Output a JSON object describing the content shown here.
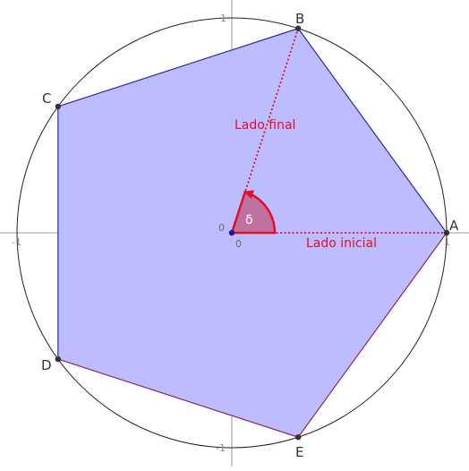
{
  "diagram": {
    "axis_ticks": {
      "x_neg": "-1",
      "x_pos": "1",
      "y_pos": "1",
      "y_neg": "-1"
    },
    "origin_labels": {
      "upper": "0",
      "lower": "0"
    },
    "vertices": [
      {
        "id": "A",
        "label": "A",
        "angle_deg": 0
      },
      {
        "id": "B",
        "label": "B",
        "angle_deg": 72
      },
      {
        "id": "C",
        "label": "C",
        "angle_deg": 144
      },
      {
        "id": "D",
        "label": "D",
        "angle_deg": 216
      },
      {
        "id": "E",
        "label": "E",
        "angle_deg": 288
      }
    ],
    "rays": {
      "initial_label": "Lado inicial",
      "final_label": "Lado final"
    },
    "angle": {
      "symbol": "δ",
      "value_deg": 72
    },
    "colors": {
      "polygon_fill": "#b8b8ff",
      "polygon_stroke": "#2a2aa8",
      "polygon_stroke_lower": "#8a2a5a",
      "circle": "#222222",
      "axis": "#9a9aaa",
      "ray": "#e0102a",
      "angle_fill": "#c05a80",
      "point": "#333333",
      "origin_point": "#1a1aaa"
    }
  }
}
